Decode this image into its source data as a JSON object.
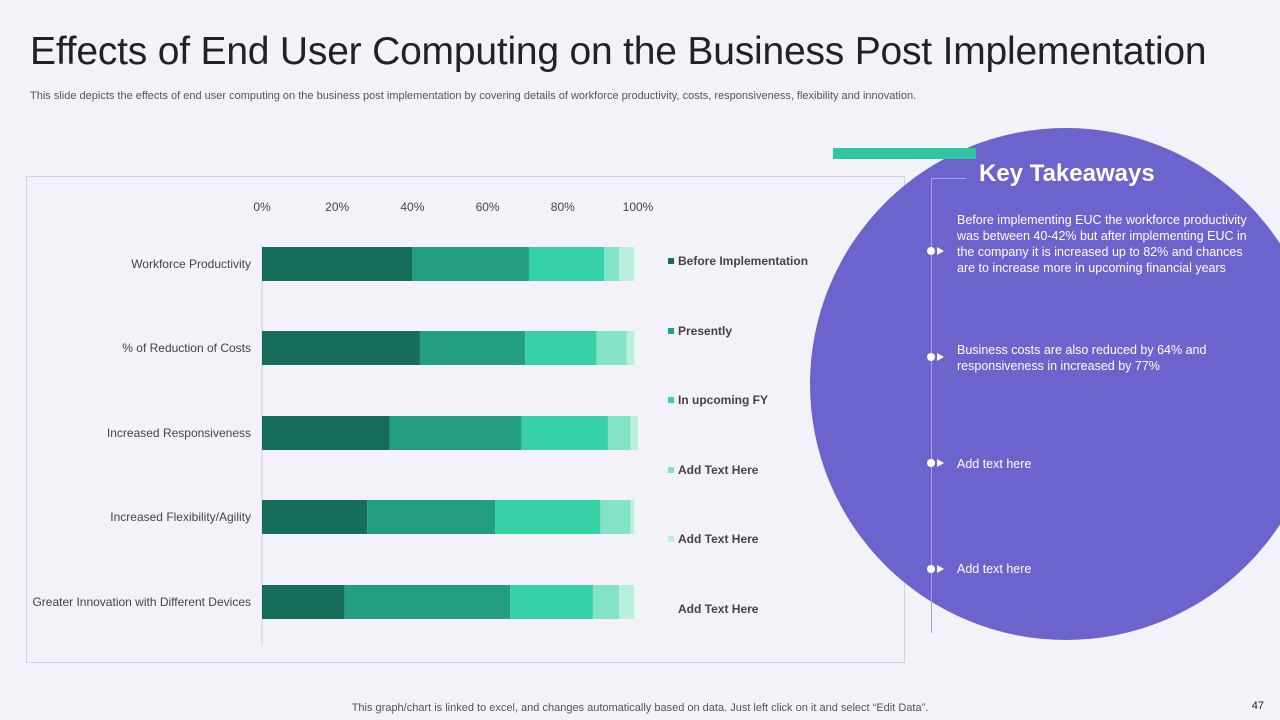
{
  "header": {
    "title": "Effects of End User Computing on the Business Post Implementation",
    "subtitle": "This slide depicts the effects of end user computing on the business post implementation by covering details of workforce productivity,  costs, responsiveness, flexibility and innovation."
  },
  "chart_data": {
    "type": "bar",
    "orientation": "horizontal",
    "stacked": true,
    "categories": [
      "Workforce Productivity",
      "% of Reduction of Costs",
      "Increased Responsiveness",
      "Increased Flexibility/Agility",
      "Greater Innovation with Different Devices"
    ],
    "series": [
      {
        "name": "Before Implementation",
        "color": "#166e58",
        "values": [
          40,
          42,
          34,
          28,
          22
        ]
      },
      {
        "name": "Presently",
        "color": "#249f7e",
        "values": [
          31,
          28,
          35,
          34,
          44
        ]
      },
      {
        "name": "In upcoming FY",
        "color": "#36d1a6",
        "values": [
          20,
          19,
          23,
          28,
          22
        ]
      },
      {
        "name": "Add Text Here",
        "color": "#84e3c6",
        "values": [
          4,
          8,
          6,
          8,
          7
        ]
      },
      {
        "name": "Add Text Here",
        "color": "#b8efdd",
        "values": [
          4,
          2,
          2,
          1,
          4
        ]
      },
      {
        "name": "Add Text Here",
        "color": "#e6f9f2",
        "values": [
          1,
          1,
          0,
          1,
          1
        ]
      }
    ],
    "xticks": [
      "0%",
      "20%",
      "40%",
      "60%",
      "80%",
      "100%"
    ],
    "xlim": [
      0,
      100
    ],
    "grid": false,
    "legend": "right"
  },
  "takeaways": {
    "title": "Key Takeaways",
    "items": [
      "Before implementing EUC the workforce productivity was between 40-42% but after implementing EUC in the company it is increased up to 82% and chances are to increase more in upcoming financial years",
      "Business costs are also reduced by 64% and responsiveness  in increased by 77%",
      "Add text here",
      "Add text here"
    ]
  },
  "footer": {
    "note": "This graph/chart is linked to excel,  and changes automatically based on data. Just left click on it and select “Edit Data”.",
    "page_number": "47"
  }
}
